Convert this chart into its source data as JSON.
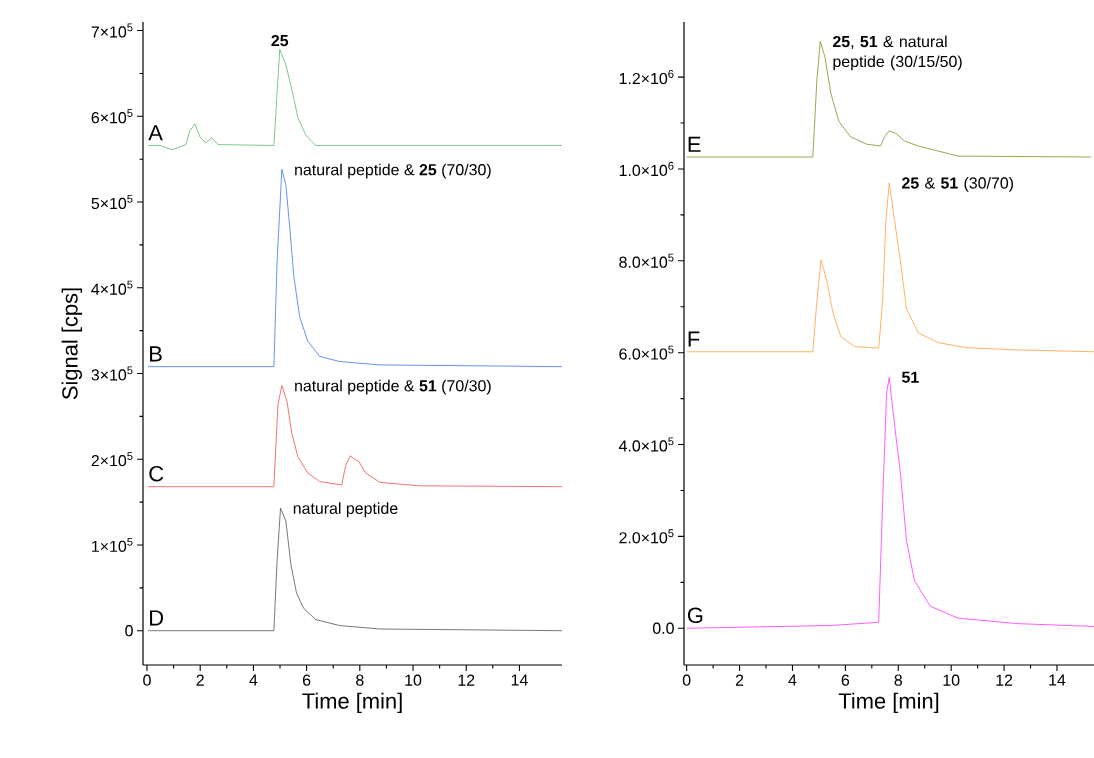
{
  "chart_data": [
    {
      "type": "line",
      "xlabel": "Time [min]",
      "ylabel": "Signal [cps]",
      "xlim": [
        -0.15,
        15.6
      ],
      "ylim": [
        -40000,
        710000
      ],
      "xticks": [
        0,
        2,
        4,
        6,
        8,
        10,
        12,
        14
      ],
      "yticks": [
        0,
        {
          "value": 100000,
          "label": "1×10$^{5}$"
        },
        {
          "value": 200000,
          "label": "2×10$^{5}$"
        },
        {
          "value": 300000,
          "label": "3×10$^{5}$"
        },
        {
          "value": 400000,
          "label": "4×10$^{5}$"
        },
        {
          "value": 500000,
          "label": "5×10$^{5}$"
        },
        {
          "value": 600000,
          "label": "6×10$^{5}$"
        },
        {
          "value": 700000,
          "label": "7×10$^{5}$"
        }
      ],
      "series": [
        {
          "name": "A",
          "color": "#5cb870",
          "x": [
            0.04,
            0.49,
            0.94,
            1.46,
            1.61,
            1.8,
            1.99,
            2.21,
            2.44,
            2.67,
            4.77,
            4.99,
            5.22,
            5.44,
            5.67,
            5.97,
            6.34,
            15.6
          ],
          "values": [
            566000,
            566000,
            561000,
            567000,
            583000,
            591000,
            576000,
            569000,
            575000,
            567000,
            566000,
            678000,
            660000,
            632000,
            599000,
            578000,
            566000,
            566000
          ]
        },
        {
          "name": "B",
          "color": "#3a78e8",
          "x": [
            0.04,
            4.77,
            4.89,
            5.07,
            5.22,
            5.37,
            5.52,
            5.74,
            6.04,
            6.49,
            7.24,
            8.75,
            15.6
          ],
          "values": [
            308000,
            308000,
            431000,
            538000,
            520000,
            469000,
            413000,
            366000,
            338000,
            320000,
            314000,
            310000,
            308000
          ]
        },
        {
          "name": "C",
          "color": "#f05050",
          "x": [
            0.04,
            4.77,
            4.92,
            5.07,
            5.26,
            5.44,
            5.67,
            6.04,
            6.49,
            7.32,
            7.47,
            7.65,
            7.8,
            7.95,
            8.22,
            8.75,
            10.25,
            15.6
          ],
          "values": [
            168000,
            168000,
            263000,
            286000,
            268000,
            231000,
            203000,
            184000,
            174000,
            170000,
            193000,
            204000,
            200000,
            198000,
            184000,
            173000,
            169000,
            168000
          ]
        },
        {
          "name": "D",
          "color": "#555555",
          "x": [
            0.04,
            4.77,
            4.89,
            5.02,
            5.22,
            5.41,
            5.62,
            5.89,
            6.34,
            7.24,
            8.75,
            15.6
          ],
          "values": [
            0,
            0,
            82000,
            143000,
            128000,
            77000,
            44000,
            26000,
            13000,
            6000,
            2000,
            0
          ]
        }
      ],
      "annotations": [
        "**25**",
        "natural peptide & **25** (70/30)",
        "natural peptide & **51** (70/30)",
        "natural peptide"
      ]
    },
    {
      "type": "line",
      "xlabel": "Time [min]",
      "xlim": [
        -0.1,
        15.4
      ],
      "ylim": [
        -80000,
        1320000
      ],
      "xticks": [
        0,
        2,
        4,
        6,
        8,
        10,
        12,
        14
      ],
      "yticks": [
        {
          "value": 0,
          "label": "0.0"
        },
        {
          "value": 200000,
          "label": "2.0×10$^{5}$"
        },
        {
          "value": 400000,
          "label": "4.0×10$^{5}$"
        },
        {
          "value": 600000,
          "label": "6.0×10$^{5}$"
        },
        {
          "value": 800000,
          "label": "8.0×10$^{5}$"
        },
        {
          "value": 1000000,
          "label": "1.0×10$^{6}$"
        },
        {
          "value": 1200000,
          "label": "1.2×10$^{6}$"
        }
      ],
      "series": [
        {
          "name": "E",
          "color": "#8c8c2a",
          "x": [
            0.0,
            4.77,
            4.92,
            5.05,
            5.23,
            5.45,
            5.75,
            6.2,
            6.8,
            7.33,
            7.48,
            7.66,
            7.93,
            8.23,
            8.76,
            10.26,
            15.3
          ],
          "values": [
            1026000,
            1026000,
            1191000,
            1278000,
            1243000,
            1165000,
            1104000,
            1070000,
            1054000,
            1050000,
            1070000,
            1083000,
            1077000,
            1061000,
            1050000,
            1028000,
            1026000
          ]
        },
        {
          "name": "F",
          "color": "#ffa040",
          "x": [
            0.0,
            4.77,
            4.92,
            5.08,
            5.3,
            5.53,
            5.83,
            6.35,
            7.26,
            7.41,
            7.53,
            7.66,
            7.86,
            8.08,
            8.31,
            8.76,
            9.51,
            10.56,
            12.52,
            15.4
          ],
          "values": [
            602000,
            602000,
            710000,
            802000,
            757000,
            687000,
            635000,
            613000,
            610000,
            713000,
            887000,
            970000,
            887000,
            800000,
            696000,
            643000,
            622000,
            611000,
            606000,
            602000
          ]
        },
        {
          "name": "G",
          "color": "#ff33ff",
          "x": [
            0.0,
            5.45,
            7.26,
            7.41,
            7.56,
            7.66,
            7.86,
            8.08,
            8.31,
            8.61,
            9.21,
            10.26,
            12.52,
            15.4
          ],
          "values": [
            0,
            6000,
            13000,
            278000,
            513000,
            546000,
            443000,
            339000,
            191000,
            104000,
            48000,
            22000,
            10000,
            4000
          ]
        }
      ],
      "annotations": [
        "**25**, **51** & natural peptide (30/15/50)",
        "**25** & **51** (30/70)",
        "**51**"
      ]
    }
  ]
}
